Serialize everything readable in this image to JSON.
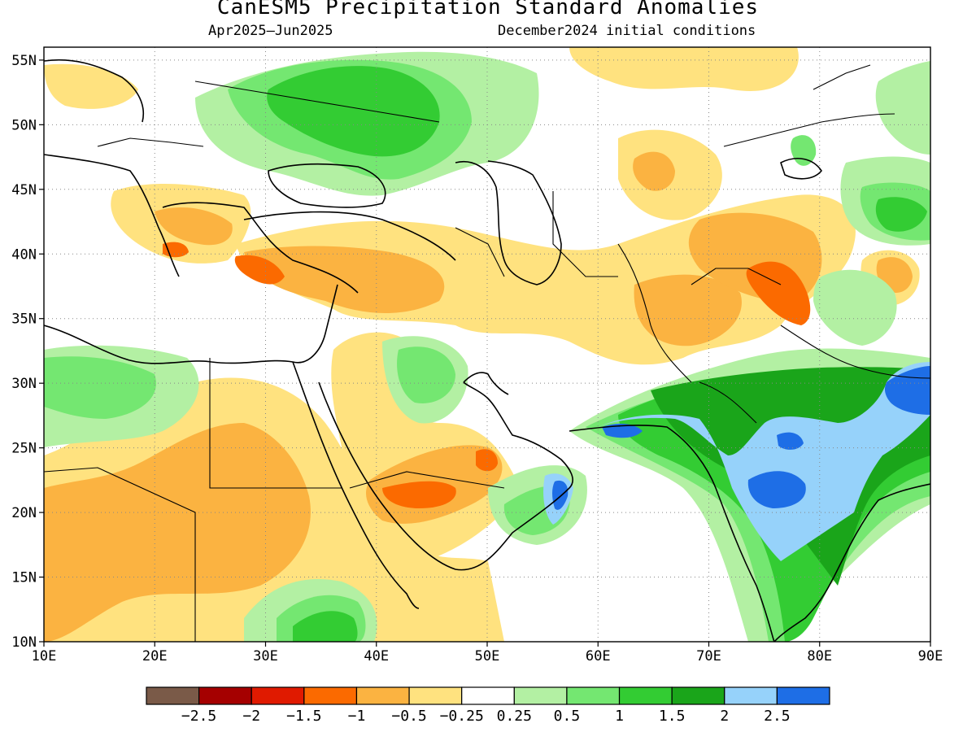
{
  "title": "CanESM5 Precipitation Standard Anomalies",
  "subtitle_left": "Apr2025–Jun2025",
  "subtitle_right": "December2024 initial conditions",
  "map": {
    "lon_range": [
      10,
      90
    ],
    "lat_range": [
      10,
      56
    ],
    "lat_labels": [
      "10N",
      "15N",
      "20N",
      "25N",
      "30N",
      "35N",
      "40N",
      "45N",
      "50N",
      "55N"
    ],
    "lon_labels": [
      "10E",
      "20E",
      "30E",
      "40E",
      "50E",
      "60E",
      "70E",
      "80E",
      "90E"
    ],
    "grid": "dotted"
  },
  "colorbar": {
    "labels": [
      "−2.5",
      "−2",
      "−1.5",
      "−1",
      "−0.5",
      "−0.25",
      "0.25",
      "0.5",
      "1",
      "1.5",
      "2",
      "2.5"
    ],
    "colors": [
      "#7a5a48",
      "#a50000",
      "#e01a00",
      "#fb6a00",
      "#fbb341",
      "#ffe27f",
      "#ffffff",
      "#b3f0a3",
      "#74e771",
      "#33cc33",
      "#1aa51a",
      "#96d2fa",
      "#1e6ee6"
    ]
  },
  "anomaly_colors": {
    "dry_strong": "#fb6a00",
    "dry_moderate": "#fbb341",
    "dry_weak": "#ffe27f",
    "wet_weak": "#b3f0a3",
    "wet_moderate": "#74e771",
    "wet_strong": "#33cc33",
    "wet_very_strong": "#1aa51a",
    "wet_light_blue": "#96d2fa",
    "wet_blue": "#1e6ee6"
  }
}
